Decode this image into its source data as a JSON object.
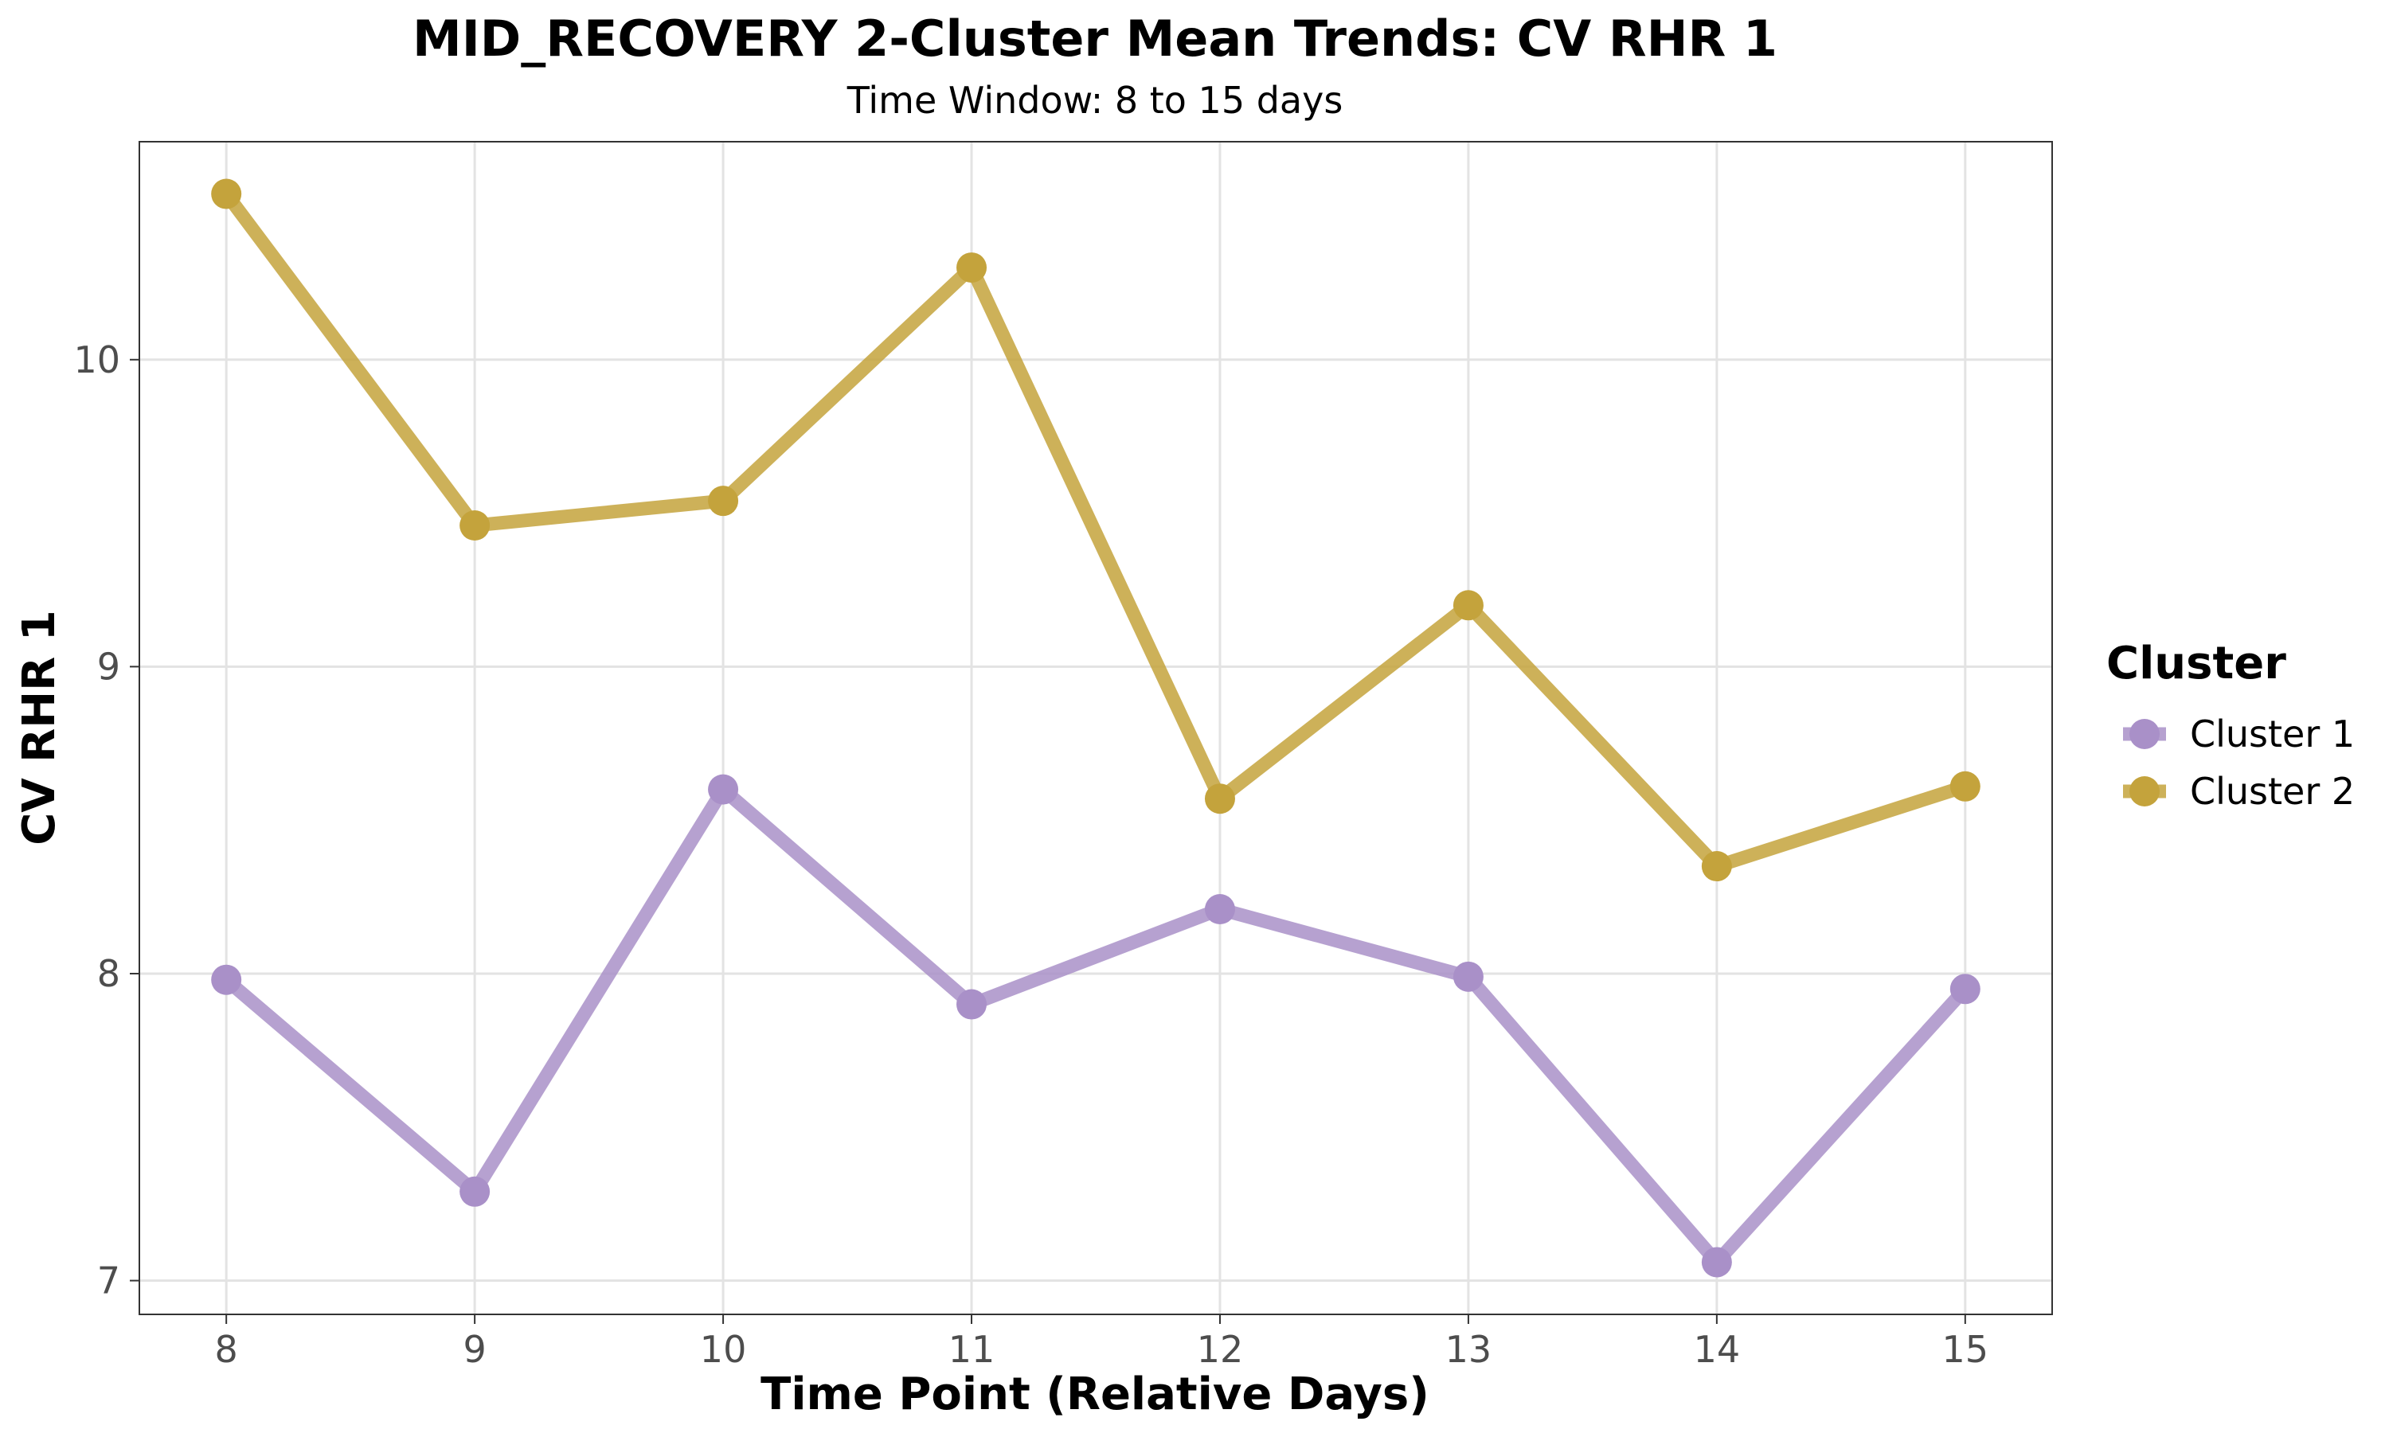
{
  "chart_data": {
    "type": "line",
    "title": "MID_RECOVERY 2-Cluster Mean Trends: CV RHR 1",
    "subtitle": "Time Window: 8 to 15 days",
    "xlabel": "Time Point (Relative Days)",
    "ylabel": "CV RHR 1",
    "x": [
      8,
      9,
      10,
      11,
      12,
      13,
      14,
      15
    ],
    "xlim": [
      7.65,
      15.35
    ],
    "ylim": [
      6.89,
      10.71
    ],
    "yticks": [
      7,
      8,
      9,
      10
    ],
    "grid": true,
    "legend_title": "Cluster",
    "legend_position": "right",
    "series": [
      {
        "name": "Cluster 1",
        "color": "#a990c8",
        "values": [
          7.98,
          7.29,
          8.6,
          7.9,
          8.21,
          7.99,
          7.06,
          7.95
        ]
      },
      {
        "name": "Cluster 2",
        "color": "#c4a33c",
        "values": [
          10.54,
          9.46,
          9.54,
          10.3,
          8.57,
          9.2,
          8.35,
          8.61
        ]
      }
    ]
  }
}
